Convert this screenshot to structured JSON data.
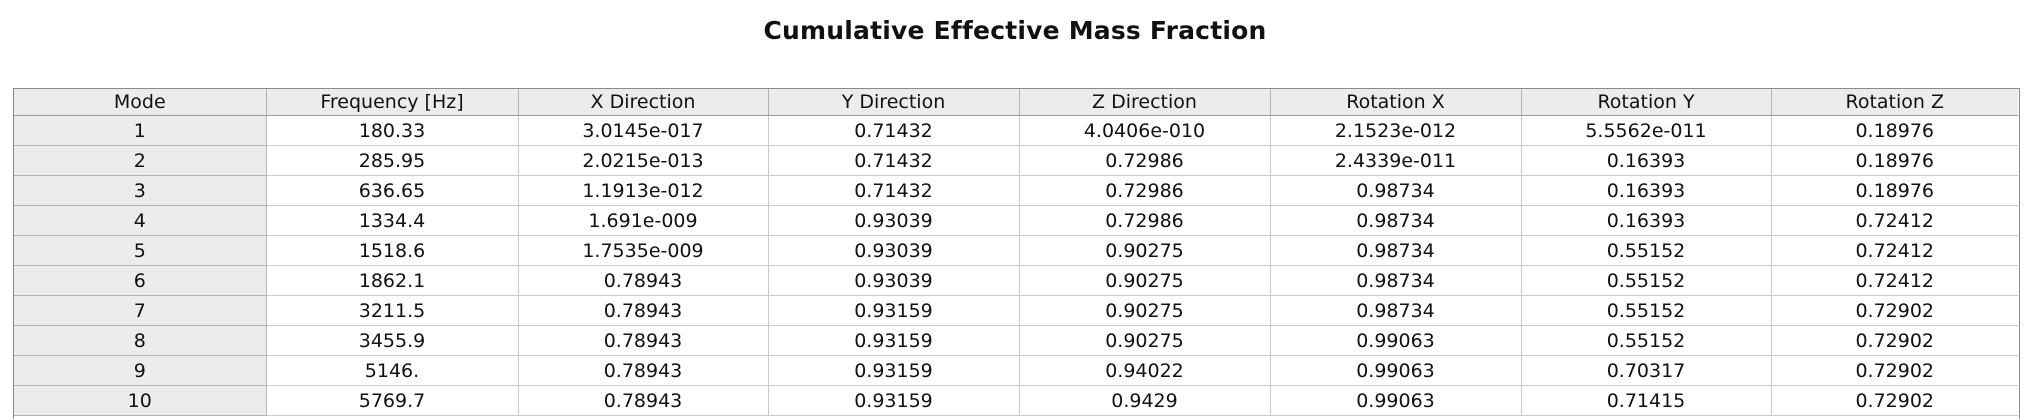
{
  "title": "Cumulative Effective Mass Fraction",
  "table": {
    "columns": [
      "Mode",
      "Frequency [Hz]",
      "X Direction",
      "Y Direction",
      "Z Direction",
      "Rotation X",
      "Rotation Y",
      "Rotation Z"
    ],
    "rows": [
      [
        "1",
        "180.33",
        "3.0145e-017",
        "0.71432",
        "4.0406e-010",
        "2.1523e-012",
        "5.5562e-011",
        "0.18976"
      ],
      [
        "2",
        "285.95",
        "2.0215e-013",
        "0.71432",
        "0.72986",
        "2.4339e-011",
        "0.16393",
        "0.18976"
      ],
      [
        "3",
        "636.65",
        "1.1913e-012",
        "0.71432",
        "0.72986",
        "0.98734",
        "0.16393",
        "0.18976"
      ],
      [
        "4",
        "1334.4",
        "1.691e-009",
        "0.93039",
        "0.72986",
        "0.98734",
        "0.16393",
        "0.72412"
      ],
      [
        "5",
        "1518.6",
        "1.7535e-009",
        "0.93039",
        "0.90275",
        "0.98734",
        "0.55152",
        "0.72412"
      ],
      [
        "6",
        "1862.1",
        "0.78943",
        "0.93039",
        "0.90275",
        "0.98734",
        "0.55152",
        "0.72412"
      ],
      [
        "7",
        "3211.5",
        "0.78943",
        "0.93159",
        "0.90275",
        "0.98734",
        "0.55152",
        "0.72902"
      ],
      [
        "8",
        "3455.9",
        "0.78943",
        "0.93159",
        "0.90275",
        "0.99063",
        "0.55152",
        "0.72902"
      ],
      [
        "9",
        "5146.",
        "0.78943",
        "0.93159",
        "0.94022",
        "0.99063",
        "0.70317",
        "0.72902"
      ],
      [
        "10",
        "5769.7",
        "0.78943",
        "0.93159",
        "0.9429",
        "0.99063",
        "0.71415",
        "0.72902"
      ]
    ]
  }
}
